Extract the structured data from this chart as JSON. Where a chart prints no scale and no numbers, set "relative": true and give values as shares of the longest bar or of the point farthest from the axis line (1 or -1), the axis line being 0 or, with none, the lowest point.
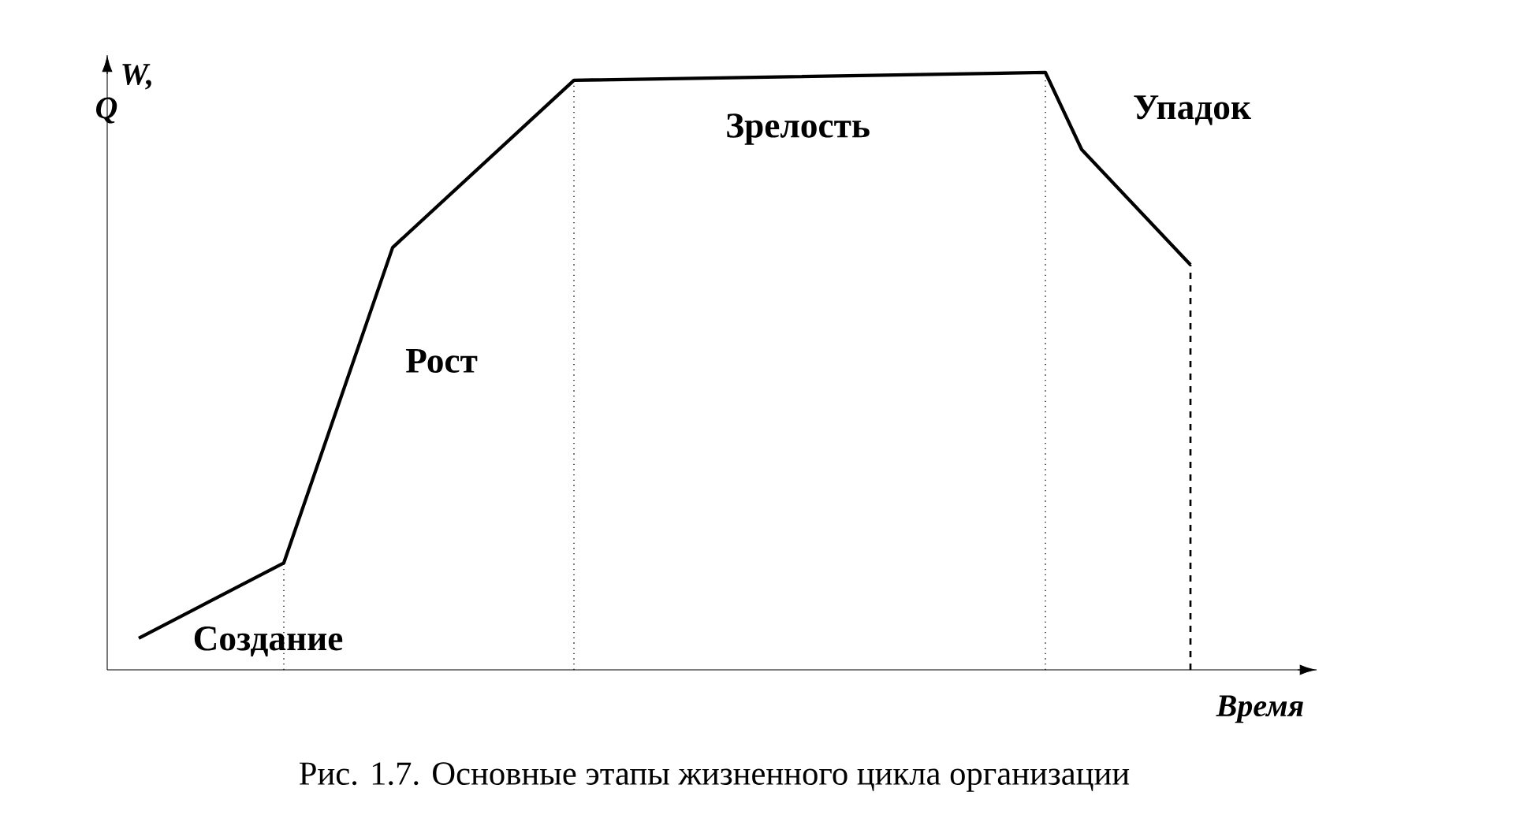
{
  "chart_data": {
    "type": "line",
    "relative": true,
    "xlabel": "Время",
    "ylabel": "W, Q",
    "categories": [
      null,
      null,
      null,
      null,
      null,
      null,
      null,
      null,
      null,
      null,
      null,
      null,
      null,
      null,
      null,
      null,
      null,
      null,
      null,
      null,
      null,
      null,
      null,
      null,
      null,
      null,
      null,
      null,
      null,
      null
    ],
    "series": [
      {
        "color": "#000000",
        "values": [
          0.053,
          null,
          null,
          null,
          0.179,
          null,
          null,
          0.707,
          null,
          null,
          null,
          null,
          0.987,
          null,
          null,
          null,
          null,
          null,
          null,
          null,
          null,
          null,
          null,
          null,
          null,
          1,
          0.871,
          null,
          null,
          0.678
        ]
      }
    ],
    "annotations": [
      "Создание",
      "Рост",
      "Зрелость",
      "Упадок",
      "Рис. 1.7. Основные этапы жизненного цикла организации"
    ],
    "marker": "none",
    "line_style": "solid"
  }
}
